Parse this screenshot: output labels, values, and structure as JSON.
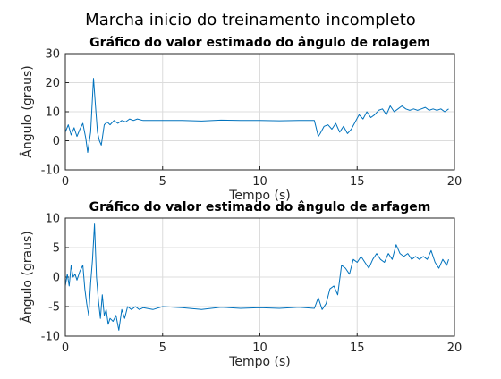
{
  "figure": {
    "suptitle": "Marcha inicio do treinamento incompleto"
  },
  "chart_data": [
    {
      "type": "line",
      "title": "Gráfico do valor estimado do ângulo de rolagem",
      "xlabel": "Tempo (s)",
      "ylabel": "Ângulo (graus)",
      "xlim": [
        0,
        20
      ],
      "ylim": [
        -10,
        30
      ],
      "xticks": [
        "0",
        "5",
        "10",
        "15",
        "20"
      ],
      "yticks": [
        "-10",
        "0",
        "10",
        "20",
        "30"
      ],
      "grid": true,
      "line_color": "#0072BD",
      "series": [
        {
          "x": [
            0,
            0.15,
            0.3,
            0.45,
            0.6,
            0.75,
            0.9,
            1.05,
            1.15,
            1.3,
            1.45,
            1.55,
            1.65,
            1.75,
            1.85,
            2.0,
            2.15,
            2.3,
            2.5,
            2.7,
            2.9,
            3.1,
            3.3,
            3.5,
            3.7,
            4.0,
            4.5,
            5.0,
            6.0,
            7.0,
            8.0,
            9.0,
            10.0,
            11.0,
            12.0,
            12.8,
            13.0,
            13.1,
            13.3,
            13.5,
            13.7,
            13.9,
            14.1,
            14.3,
            14.5,
            14.7,
            14.9,
            15.1,
            15.3,
            15.5,
            15.7,
            15.9,
            16.1,
            16.3,
            16.5,
            16.7,
            16.9,
            17.1,
            17.3,
            17.5,
            17.7,
            17.9,
            18.1,
            18.3,
            18.5,
            18.7,
            18.9,
            19.1,
            19.3,
            19.5,
            19.7
          ],
          "y": [
            3,
            5.5,
            2,
            4.5,
            1.5,
            4,
            6,
            1,
            -4,
            3,
            21.5,
            12,
            3,
            0,
            -1.5,
            5.5,
            6.5,
            5.5,
            7,
            6,
            7,
            6.5,
            7.5,
            7,
            7.5,
            7,
            7,
            7,
            7,
            6.8,
            7.1,
            7,
            7,
            6.9,
            7,
            7,
            1.5,
            2.5,
            5,
            5.5,
            4,
            6,
            3,
            5,
            2.5,
            4,
            6.5,
            9,
            7.5,
            10,
            8,
            9,
            10.5,
            11,
            9,
            12,
            10,
            11,
            12,
            11,
            10.5,
            11,
            10.5,
            11,
            11.5,
            10.5,
            11,
            10.5,
            11,
            10,
            11
          ]
        }
      ]
    },
    {
      "type": "line",
      "title": "Gráfico do valor estimado do ângulo de arfagem",
      "xlabel": "Tempo (s)",
      "ylabel": "Ângulo (graus)",
      "xlim": [
        0,
        20
      ],
      "ylim": [
        -10,
        10
      ],
      "xticks": [
        "0",
        "5",
        "10",
        "15",
        "20"
      ],
      "yticks": [
        "-10",
        "-5",
        "0",
        "5",
        "10"
      ],
      "grid": true,
      "line_color": "#0072BD",
      "series": [
        {
          "x": [
            0,
            0.1,
            0.2,
            0.3,
            0.4,
            0.5,
            0.6,
            0.75,
            0.9,
            1.0,
            1.1,
            1.2,
            1.3,
            1.4,
            1.5,
            1.6,
            1.7,
            1.8,
            1.9,
            2.0,
            2.1,
            2.2,
            2.3,
            2.45,
            2.6,
            2.75,
            2.9,
            3.05,
            3.2,
            3.4,
            3.6,
            3.8,
            4.0,
            4.5,
            5.0,
            6.0,
            7.0,
            8.0,
            9.0,
            10.0,
            11.0,
            12.0,
            12.8,
            13.0,
            13.2,
            13.4,
            13.6,
            13.8,
            14.0,
            14.2,
            14.4,
            14.6,
            14.8,
            15.0,
            15.2,
            15.4,
            15.6,
            15.8,
            16.0,
            16.2,
            16.4,
            16.6,
            16.8,
            17.0,
            17.2,
            17.4,
            17.6,
            17.8,
            18.0,
            18.2,
            18.4,
            18.6,
            18.8,
            19.0,
            19.2,
            19.4,
            19.6,
            19.7
          ],
          "y": [
            -1.5,
            0.5,
            -1.5,
            2,
            0,
            0.5,
            -0.5,
            1,
            2,
            -2,
            -4.5,
            -6.5,
            -1,
            3,
            9,
            0,
            -4,
            -7,
            -3,
            -6.5,
            -5.5,
            -8,
            -7,
            -7.5,
            -6.5,
            -9,
            -5.5,
            -7,
            -5,
            -5.5,
            -5,
            -5.5,
            -5.2,
            -5.5,
            -5,
            -5.2,
            -5.5,
            -5.1,
            -5.3,
            -5.2,
            -5.3,
            -5.1,
            -5.3,
            -3.5,
            -5.5,
            -4.5,
            -2,
            -1.5,
            -3,
            2,
            1.5,
            0.5,
            3,
            2.5,
            3.5,
            2.5,
            1.5,
            3,
            4,
            3,
            2.5,
            4,
            3,
            5.5,
            4,
            3.5,
            4,
            3,
            3.5,
            3,
            3.5,
            3,
            4.5,
            2.5,
            1.5,
            3,
            2,
            3
          ]
        }
      ]
    }
  ]
}
